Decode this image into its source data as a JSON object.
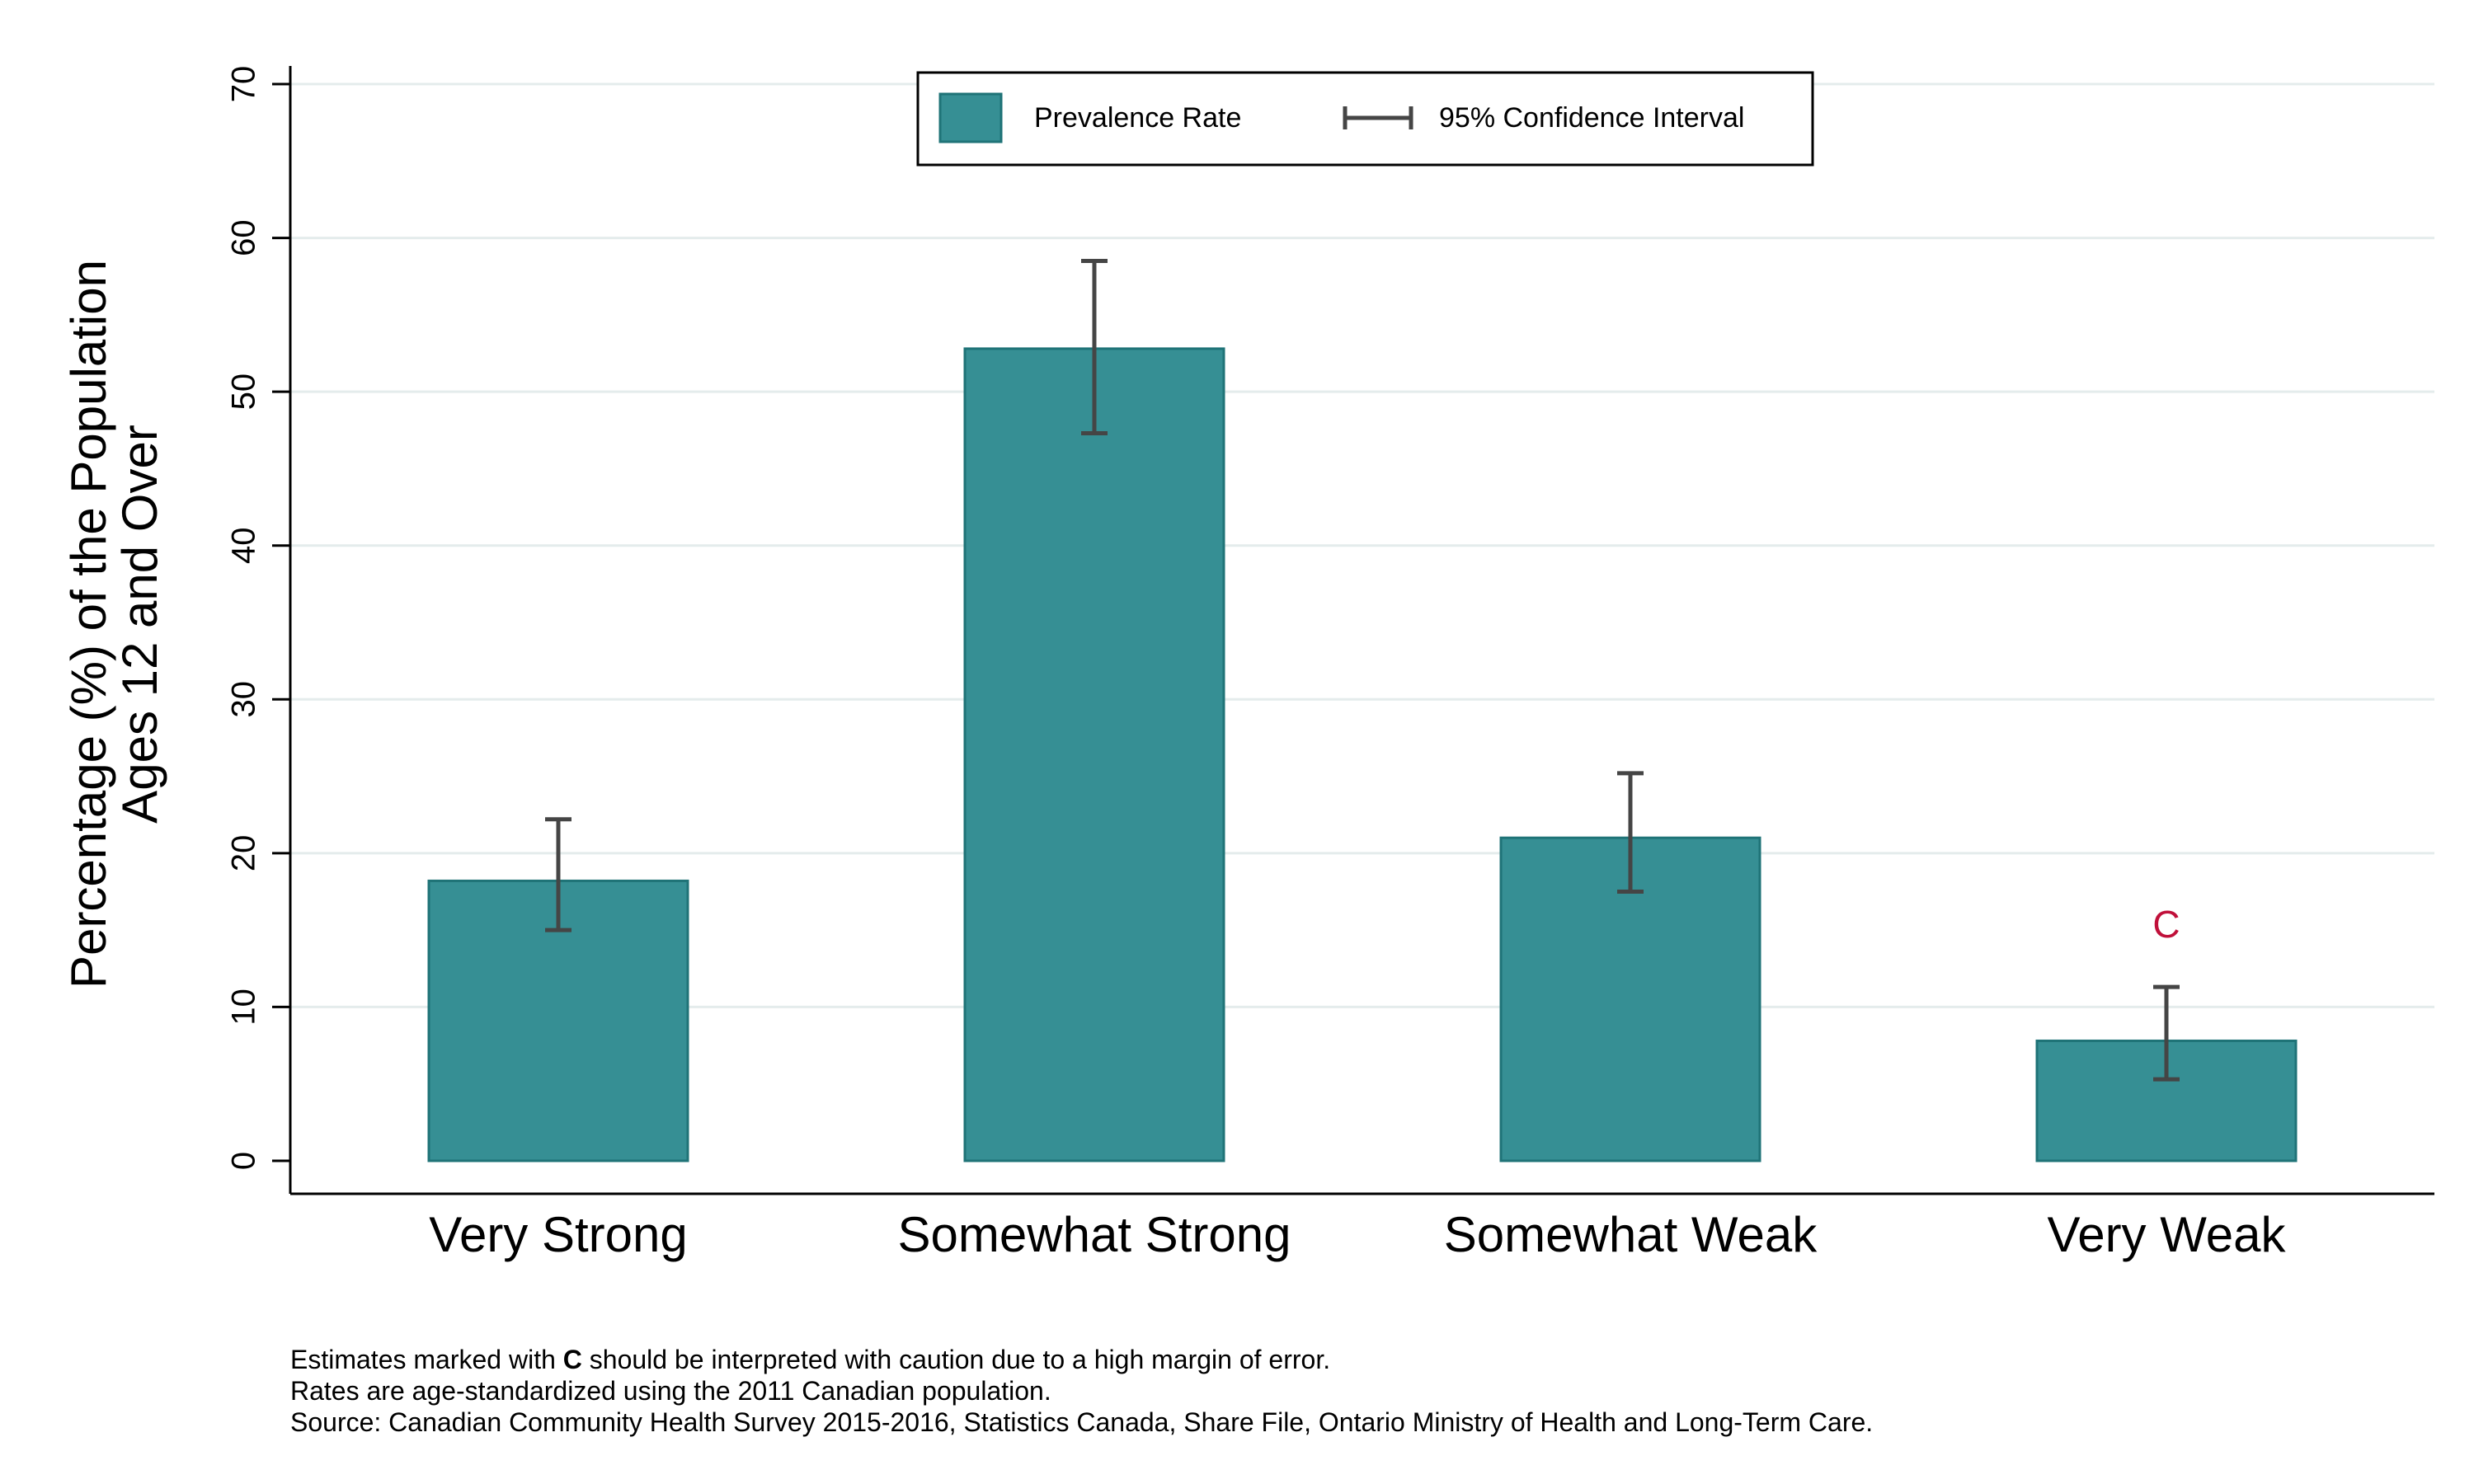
{
  "chart_data": {
    "type": "bar",
    "title": "",
    "xlabel": "",
    "ylabel_lines": [
      "Percentage (%) of the Population",
      "Ages 12 and Over"
    ],
    "categories": [
      "Very Strong",
      "Somewhat Strong",
      "Somewhat Weak",
      "Very Weak"
    ],
    "series": [
      {
        "name": "Prevalence Rate",
        "values": [
          18.2,
          52.8,
          21.0,
          7.8
        ],
        "ci_low": [
          15.0,
          47.3,
          17.5,
          5.3
        ],
        "ci_high": [
          22.2,
          58.5,
          25.2,
          11.3
        ],
        "color": "#368f94"
      }
    ],
    "caution_flags": [
      "",
      "",
      "",
      "C"
    ],
    "ylim": [
      0,
      70
    ],
    "yticks": [
      0,
      10,
      20,
      30,
      40,
      50,
      60,
      70
    ],
    "grid": true,
    "legend": {
      "placement": "top-center",
      "entries": [
        "Prevalence Rate",
        "95% Confidence Interval"
      ]
    }
  },
  "colors": {
    "bar": "#368f94",
    "bar_edge": "#1f7377",
    "error_bar": "#454545",
    "grid": "#e4ecec",
    "caution": "#c0103a"
  },
  "notes": {
    "line1_prefix": "Estimates marked with ",
    "line1_flag": "C",
    "line1_suffix": " should be interpreted with caution due to a high margin of error.",
    "line2": "Rates are age-standardized using the 2011 Canadian population.",
    "line3": "Source: Canadian Community Health Survey 2015-2016, Statistics Canada, Share File, Ontario Ministry of Health and Long-Term Care."
  }
}
